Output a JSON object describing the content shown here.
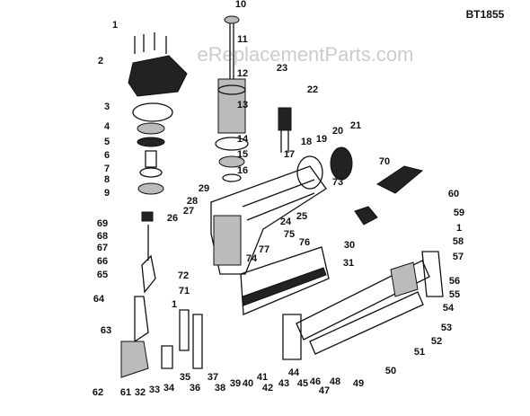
{
  "header": {
    "model": "BT1855",
    "watermark": "eReplacementParts.com"
  },
  "callouts": [
    "1",
    "2",
    "3",
    "4",
    "5",
    "6",
    "7",
    "8",
    "9",
    "10",
    "11",
    "12",
    "13",
    "14",
    "15",
    "16",
    "17",
    "18",
    "19",
    "20",
    "21",
    "22",
    "23",
    "24",
    "25",
    "26",
    "27",
    "28",
    "29",
    "30",
    "31",
    "32",
    "33",
    "34",
    "35",
    "36",
    "37",
    "38",
    "39",
    "40",
    "41",
    "42",
    "43",
    "44",
    "45",
    "46",
    "47",
    "48",
    "49",
    "50",
    "51",
    "52",
    "53",
    "54",
    "55",
    "56",
    "57",
    "58",
    "59",
    "60",
    "61",
    "62",
    "63",
    "64",
    "65",
    "66",
    "67",
    "68",
    "69",
    "70",
    "71",
    "72",
    "73",
    "74",
    "75",
    "76",
    "77",
    "1",
    "1"
  ]
}
